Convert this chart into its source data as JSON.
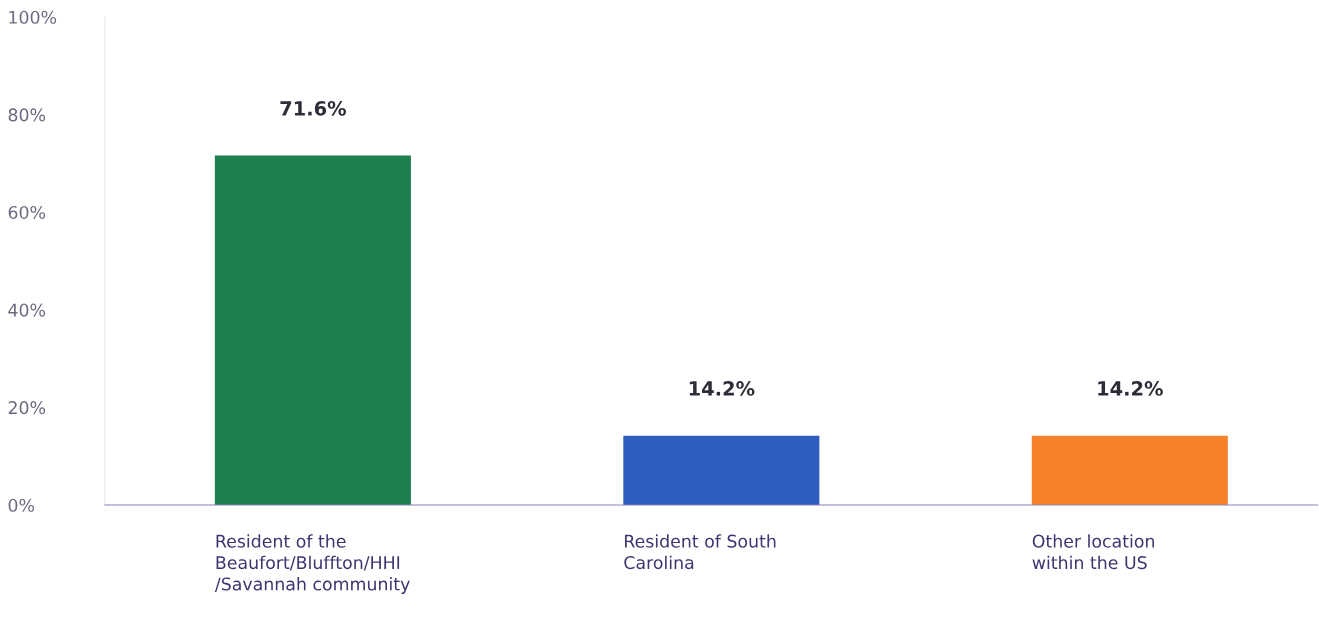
{
  "chart_data": {
    "type": "bar",
    "categories": [
      "Resident of the\nBeaufort/Bluffton/HHI\n/Savannah community",
      "Resident of South\nCarolina",
      "Other location\nwithin the US"
    ],
    "values": [
      71.6,
      14.2,
      14.2
    ],
    "colors": [
      "#1e7e4e",
      "#2f5cbf",
      "#f5822b"
    ],
    "ylim": [
      0,
      100
    ],
    "yticks": [
      {
        "value": 0,
        "label": "0%"
      },
      {
        "value": 20,
        "label": "20%"
      },
      {
        "value": 40,
        "label": "40%"
      },
      {
        "value": 60,
        "label": "60%"
      },
      {
        "value": 80,
        "label": "80%"
      },
      {
        "value": 100,
        "label": "100%"
      }
    ],
    "value_labels": [
      "71.6%",
      "14.2%",
      "14.2%"
    ],
    "grid": false,
    "legend": false
  }
}
